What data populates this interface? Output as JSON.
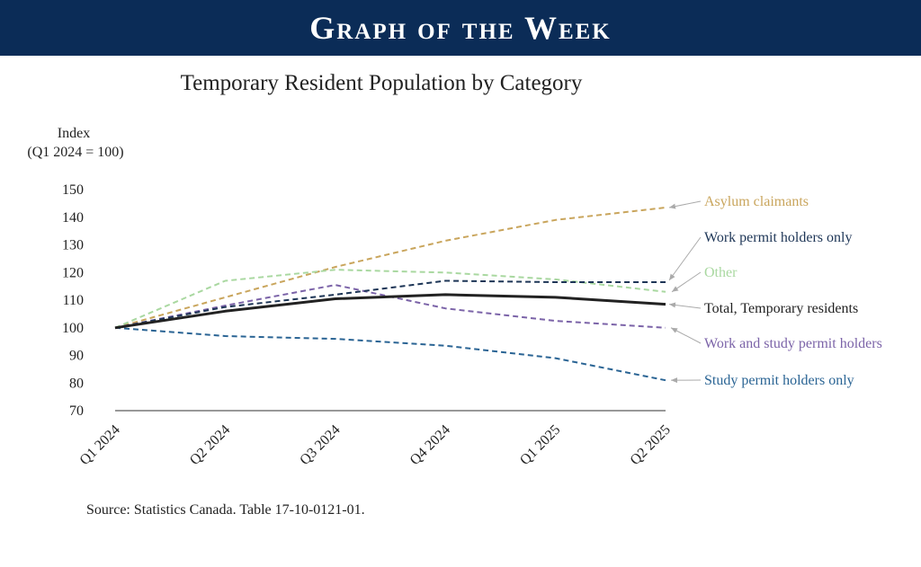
{
  "banner": {
    "title": "Graph of the Week"
  },
  "colors": {
    "banner_bg": "#0b2c57",
    "axis": "#777777",
    "arrow": "#aaaaaa"
  },
  "chart_data": {
    "type": "line",
    "title": "Temporary Resident Population by Category",
    "ylabel": [
      "Index",
      "(Q1 2024 = 100)"
    ],
    "xlabel": "",
    "ylim": [
      70,
      150
    ],
    "yticks": [
      150,
      140,
      130,
      120,
      110,
      100,
      90,
      80,
      70
    ],
    "categories": [
      "Q1 2024",
      "Q2 2024",
      "Q3 2024",
      "Q4 2024",
      "Q1 2025",
      "Q2 2025"
    ],
    "series": [
      {
        "key": "asylum",
        "name": "Asylum claimants",
        "color": "#c9a55c",
        "dash": true,
        "values": [
          100,
          111,
          122,
          131.5,
          139,
          143.5
        ]
      },
      {
        "key": "work",
        "name": "Work permit holders only",
        "color": "#1d3556",
        "dash": true,
        "values": [
          100,
          107.5,
          112,
          117,
          116.5,
          116.5
        ]
      },
      {
        "key": "other",
        "name": "Other",
        "color": "#a9d8a0",
        "dash": true,
        "values": [
          100,
          117,
          121,
          120,
          117.5,
          113
        ]
      },
      {
        "key": "total",
        "name": "Total, Temporary residents",
        "color": "#222222",
        "dash": false,
        "values": [
          100,
          106,
          110.5,
          112,
          111,
          108.5
        ]
      },
      {
        "key": "workstudy",
        "name": "Work and study permit holders",
        "color": "#7b63a8",
        "dash": true,
        "values": [
          100,
          108,
          115.5,
          107,
          102.5,
          100
        ]
      },
      {
        "key": "study",
        "name": "Study permit holders only",
        "color": "#2a6494",
        "dash": true,
        "values": [
          100,
          97,
          96,
          93.5,
          89,
          81
        ]
      }
    ]
  },
  "source": "Source: Statistics Canada. Table 17-10-0121-01."
}
